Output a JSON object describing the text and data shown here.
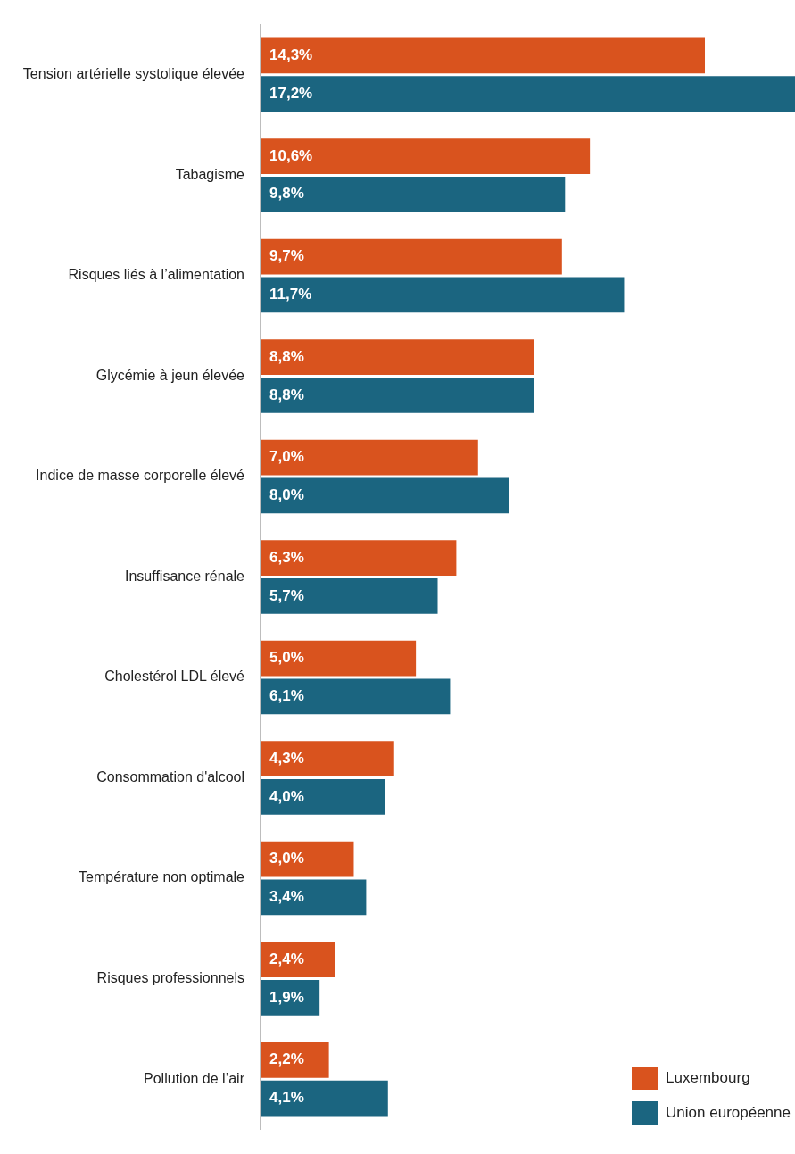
{
  "chart_data": {
    "type": "bar",
    "orientation": "horizontal",
    "legend": "bottom right",
    "grid": false,
    "categories": [
      "Tension artérielle systolique élevée",
      "Tabagisme",
      "Risques liés à l’alimentation",
      "Glycémie à jeun élevée",
      "Indice de masse corporelle élevé",
      "Insuffisance rénale",
      "Cholestérol LDL élevé",
      "Consommation d'alcool",
      "Température non optimale",
      "Risques professionnels",
      "Pollution de l’air"
    ],
    "series": [
      {
        "name": "Luxembourg",
        "color": "#d9531e",
        "values": [
          14.3,
          10.6,
          9.7,
          8.8,
          7.0,
          6.3,
          5.0,
          4.3,
          3.0,
          2.4,
          2.2
        ],
        "value_labels": [
          "14,3%",
          "10,6%",
          "9,7%",
          "8,8%",
          "7,0%",
          "6,3%",
          "5,0%",
          "4,3%",
          "3,0%",
          "2,4%",
          "2,2%"
        ]
      },
      {
        "name": "Union européenne",
        "color": "#1b6580",
        "values": [
          17.2,
          9.8,
          11.7,
          8.8,
          8.0,
          5.7,
          6.1,
          4.0,
          3.4,
          1.9,
          4.1
        ],
        "value_labels": [
          "17,2%",
          "9,8%",
          "11,7%",
          "8,8%",
          "8,0%",
          "5,7%",
          "6,1%",
          "4,0%",
          "3,4%",
          "1,9%",
          "4,1%"
        ]
      }
    ]
  }
}
